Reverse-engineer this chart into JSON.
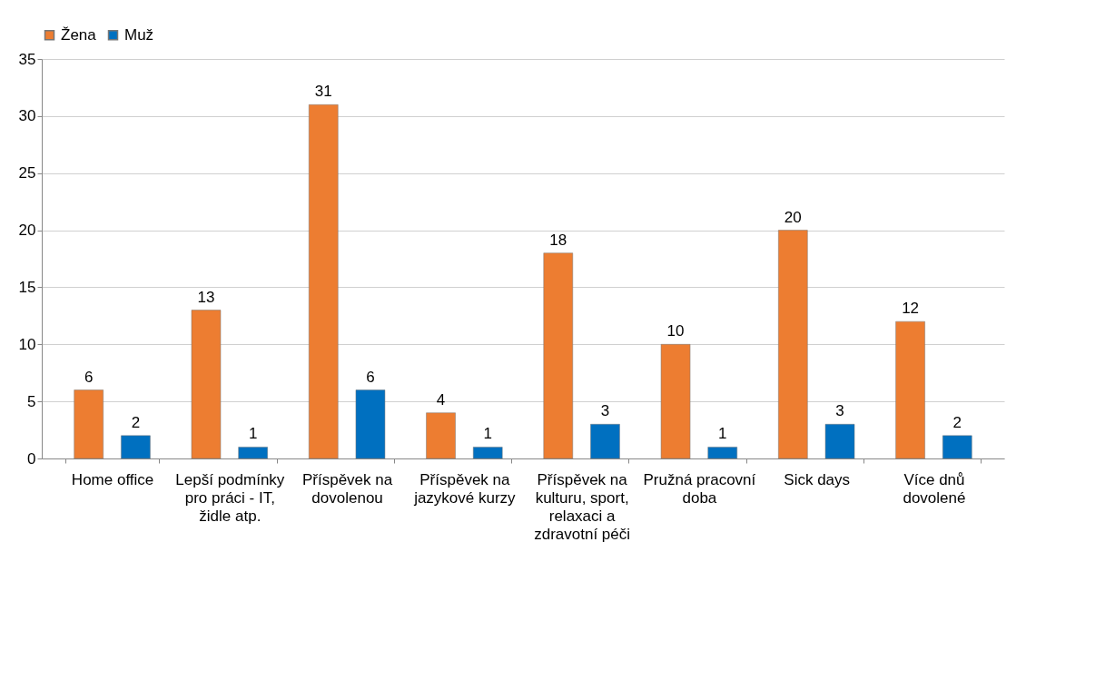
{
  "chart_data": {
    "type": "bar",
    "categories": [
      "Home office",
      "Lepší podmínky pro práci - IT, židle atp.",
      "Příspěvek na dovolenou",
      "Příspěvek na jazykové kurzy",
      "Příspěvek na kulturu, sport, relaxaci a zdravotní péči",
      "Pružná pracovní doba",
      "Sick days",
      "Více dnů dovolené"
    ],
    "series": [
      {
        "name": "Žena",
        "color": "#ed7d31",
        "values": [
          6,
          13,
          31,
          4,
          18,
          10,
          20,
          12
        ]
      },
      {
        "name": "Muž",
        "color": "#0070c0",
        "values": [
          2,
          1,
          6,
          1,
          3,
          1,
          3,
          2
        ]
      }
    ],
    "ylim": [
      0,
      35
    ],
    "yticks": [
      0,
      5,
      10,
      15,
      20,
      25,
      30,
      35
    ],
    "grid": "y",
    "legend": "top",
    "data_labels": true
  }
}
